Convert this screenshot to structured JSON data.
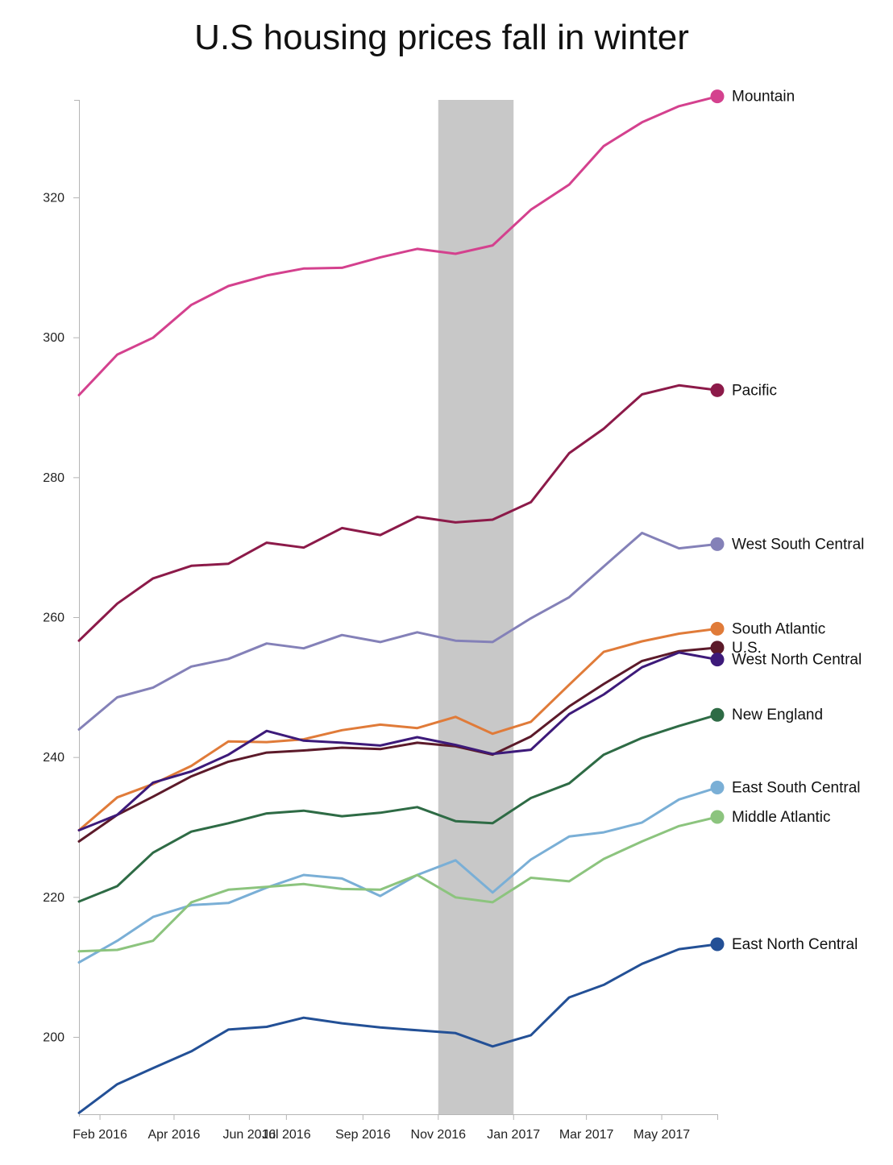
{
  "chart_data": {
    "type": "line",
    "title": "U.S housing prices fall in winter",
    "xlabel": "",
    "ylabel": "",
    "x": [
      "2016-01",
      "2016-02",
      "2016-03",
      "2016-04",
      "2016-05",
      "2016-06",
      "2016-07",
      "2016-08",
      "2016-09",
      "2016-10",
      "2016-11",
      "2016-12",
      "2017-01",
      "2017-02",
      "2017-03",
      "2017-04",
      "2017-05",
      "2017-06"
    ],
    "x_tick_labels": [
      "Feb 2016",
      "Apr 2016",
      "Jun 2016",
      "Jul 2016",
      "Sep 2016",
      "Nov 2016",
      "Jan 2017",
      "Mar 2017",
      "May 2017"
    ],
    "y_ticks": [
      200,
      220,
      240,
      260,
      280,
      300,
      320
    ],
    "ylim": [
      189,
      334
    ],
    "grid": false,
    "highlight": {
      "from": "2016-11",
      "to": "2017-01",
      "color": "#c8c8c8"
    },
    "series": [
      {
        "name": "Mountain",
        "color": "#d4418e",
        "values": [
          291.8,
          297.6,
          300.0,
          304.7,
          307.4,
          308.9,
          309.9,
          310.0,
          311.5,
          312.7,
          312.0,
          313.2,
          318.3,
          321.9,
          327.4,
          330.8,
          333.1,
          334.5
        ]
      },
      {
        "name": "Pacific",
        "color": "#8c1a49",
        "values": [
          256.7,
          262.0,
          265.6,
          267.4,
          267.7,
          270.7,
          270.0,
          272.8,
          271.8,
          274.4,
          273.6,
          274.0,
          276.5,
          283.5,
          287.0,
          291.9,
          293.2,
          292.5
        ]
      },
      {
        "name": "West South Central",
        "color": "#8481b8",
        "values": [
          244.0,
          248.6,
          250.0,
          253.0,
          254.1,
          256.3,
          255.6,
          257.5,
          256.5,
          257.9,
          256.7,
          256.5,
          259.9,
          262.9,
          267.3,
          272.1,
          269.9,
          270.5
        ]
      },
      {
        "name": "South Atlantic",
        "color": "#e07b39",
        "values": [
          229.6,
          234.3,
          236.2,
          238.8,
          242.3,
          242.2,
          242.6,
          243.9,
          244.7,
          244.2,
          245.8,
          243.4,
          245.1,
          250.4,
          255.1,
          256.6,
          257.7,
          258.4
        ]
      },
      {
        "name": "U.S.",
        "color": "#5c1a2a",
        "values": [
          228.0,
          231.8,
          234.4,
          237.3,
          239.4,
          240.7,
          241.0,
          241.4,
          241.2,
          242.1,
          241.6,
          240.4,
          243.0,
          247.3,
          250.5,
          253.8,
          255.2,
          255.7
        ]
      },
      {
        "name": "West North Central",
        "color": "#3d1a7a",
        "values": [
          229.6,
          231.8,
          236.4,
          238.0,
          240.4,
          243.8,
          242.4,
          242.1,
          241.7,
          242.9,
          241.8,
          240.5,
          241.1,
          246.2,
          249.0,
          252.9,
          255.0,
          254.0
        ]
      },
      {
        "name": "New England",
        "color": "#2e6b45",
        "values": [
          219.4,
          221.6,
          226.4,
          229.4,
          230.6,
          232.0,
          232.4,
          231.6,
          232.1,
          232.9,
          230.9,
          230.6,
          234.2,
          236.3,
          240.4,
          242.8,
          244.5,
          246.1
        ]
      },
      {
        "name": "East South Central",
        "color": "#7aafd6",
        "values": [
          210.7,
          213.8,
          217.2,
          218.9,
          219.2,
          221.4,
          223.2,
          222.7,
          220.2,
          223.2,
          225.3,
          220.7,
          225.4,
          228.7,
          229.3,
          230.7,
          234.0,
          235.7
        ]
      },
      {
        "name": "Middle Atlantic",
        "color": "#8cc47e",
        "values": [
          212.3,
          212.5,
          213.8,
          219.3,
          221.1,
          221.5,
          221.9,
          221.2,
          221.1,
          223.2,
          220.0,
          219.3,
          222.8,
          222.3,
          225.5,
          228.0,
          230.2,
          231.5
        ]
      },
      {
        "name": "East North Central",
        "color": "#235096",
        "values": [
          189.2,
          193.3,
          195.6,
          198.0,
          201.1,
          201.5,
          202.8,
          202.0,
          201.4,
          201.0,
          200.6,
          198.7,
          200.3,
          205.7,
          207.5,
          210.5,
          212.6,
          213.3
        ]
      }
    ]
  }
}
